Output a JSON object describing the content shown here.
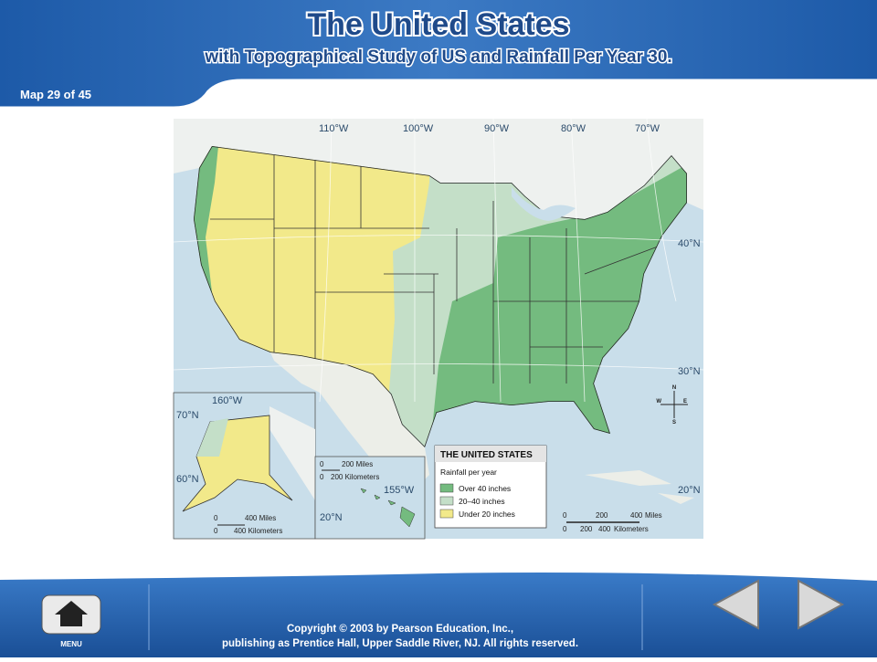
{
  "header": {
    "title": "The United States",
    "subtitle": "with Topographical Study of US and Rainfall Per Year 30.",
    "counter": "Map 29 of 45"
  },
  "map": {
    "title": "THE UNITED STATES",
    "legend": {
      "heading": "Rainfall per year",
      "items": [
        {
          "label": "Over 40 inches",
          "color": "#74bb7f"
        },
        {
          "label": "20–40 inches",
          "color": "#c4dfc8"
        },
        {
          "label": "Under 20 inches",
          "color": "#f2e98a"
        }
      ]
    },
    "longitudes": [
      "110°W",
      "100°W",
      "90°W",
      "80°W",
      "70°W"
    ],
    "latitudes": [
      "40°N",
      "30°N",
      "20°N"
    ],
    "compass": [
      "N",
      "E",
      "S",
      "W"
    ],
    "scale": {
      "ticks": [
        "0",
        "200",
        "400"
      ],
      "miles": "Miles",
      "kilometers": "Kilometers"
    },
    "alaska": {
      "longitude": "160°W",
      "latitudes": [
        "70°N",
        "60°N"
      ],
      "scale": [
        "0",
        "400 Miles",
        "0",
        "400 Kilometers"
      ]
    },
    "hawaii": {
      "longitude": "155°W",
      "latitude": "20°N",
      "scale": [
        "0",
        "200 Miles",
        "0",
        "200 Kilometers"
      ]
    }
  },
  "footer": {
    "menu": "MENU",
    "copyright": [
      "Copyright © 2003 by Pearson Education, Inc.,",
      "publishing as Prentice Hall, Upper Saddle River, NJ. All rights reserved."
    ]
  }
}
